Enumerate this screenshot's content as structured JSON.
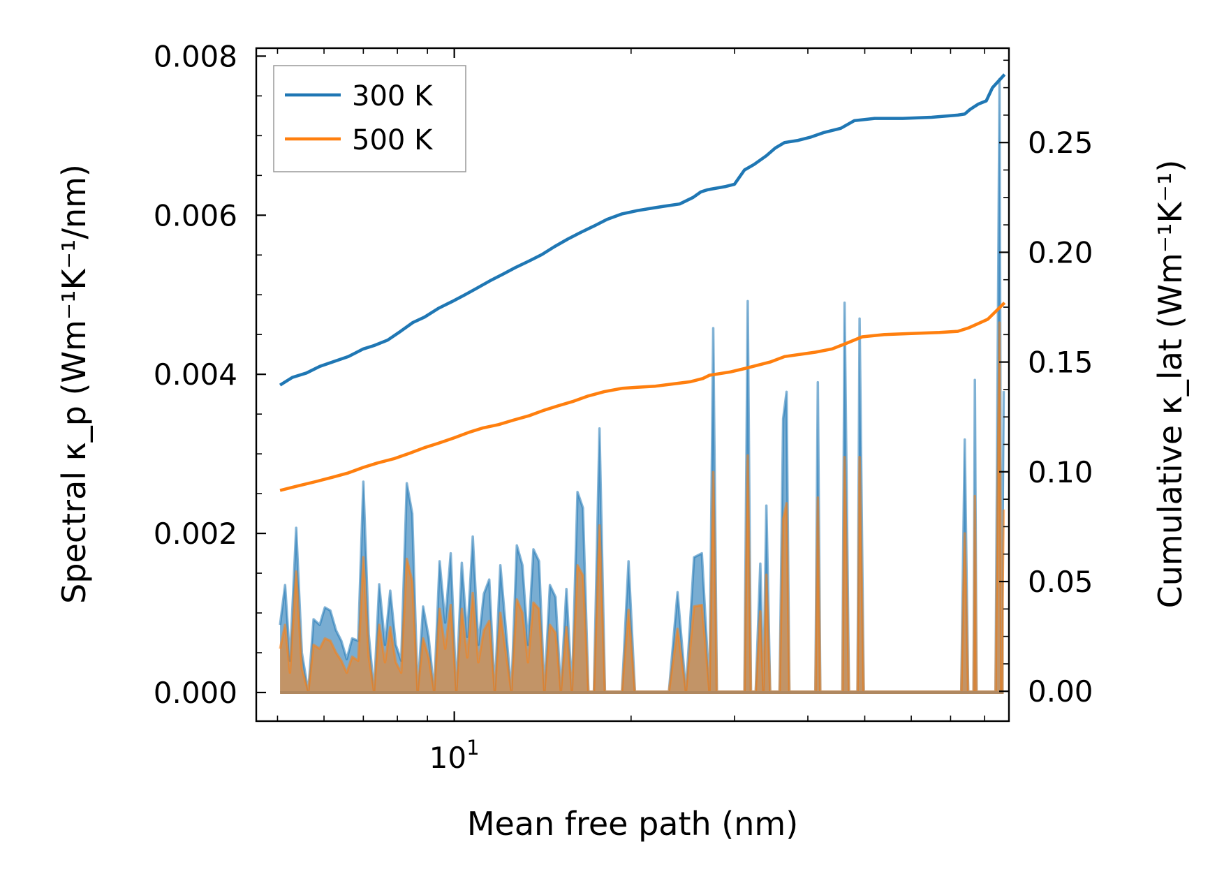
{
  "chart_data": {
    "type": "line",
    "title": "",
    "xlabel": "Mean free path (nm)",
    "ylabel_left": "Spectral κ_p (Wm⁻¹K⁻¹/nm)",
    "ylabel_right": "Cumulative κ_lat (Wm⁻¹K⁻¹)",
    "xscale": "log",
    "xlim": [
      4.6,
      88
    ],
    "ylim_left": [
      -0.00036,
      0.0081
    ],
    "ylim_right": [
      -0.0136,
      0.293
    ],
    "x_tick_labels": [
      {
        "value": 10,
        "base": "10",
        "exp": "1"
      }
    ],
    "y_left_ticks": [
      {
        "value": 0.0,
        "label": "0.000"
      },
      {
        "value": 0.002,
        "label": "0.002"
      },
      {
        "value": 0.004,
        "label": "0.004"
      },
      {
        "value": 0.006,
        "label": "0.006"
      },
      {
        "value": 0.008,
        "label": "0.008"
      }
    ],
    "y_right_ticks": [
      {
        "value": 0.0,
        "label": "0.00"
      },
      {
        "value": 0.05,
        "label": "0.05"
      },
      {
        "value": 0.1,
        "label": "0.10"
      },
      {
        "value": 0.15,
        "label": "0.15"
      },
      {
        "value": 0.2,
        "label": "0.20"
      },
      {
        "value": 0.25,
        "label": "0.25"
      }
    ],
    "legend": {
      "position": "top-left",
      "entries": [
        {
          "label": "300 K",
          "color": "#1f77b4"
        },
        {
          "label": "500 K",
          "color": "#ff7f0e"
        }
      ]
    },
    "spectral_series": [
      {
        "name": "300 K",
        "axis": "left",
        "fill_color": "#1f77b4",
        "fill_opacity": 0.6,
        "x": [
          5.05,
          5.15,
          5.25,
          5.38,
          5.5,
          5.64,
          5.76,
          5.9,
          6.02,
          6.15,
          6.29,
          6.42,
          6.56,
          6.7,
          6.86,
          7.0,
          7.15,
          7.3,
          7.45,
          7.62,
          7.78,
          7.95,
          8.12,
          8.3,
          8.48,
          8.66,
          8.85,
          9.04,
          9.24,
          9.44,
          9.65,
          9.86,
          10.08,
          10.3,
          10.52,
          10.75,
          10.99,
          11.23,
          11.47,
          11.72,
          11.98,
          12.24,
          12.51,
          12.78,
          13.06,
          13.35,
          13.64,
          13.94,
          14.24,
          14.55,
          14.87,
          15.19,
          15.52,
          15.86,
          16.21,
          16.56,
          16.92,
          17.29,
          17.67,
          18.05,
          18.45,
          18.85,
          19.3,
          19.8,
          20.3,
          20.9,
          21.4,
          22.0,
          22.6,
          23.2,
          24.0,
          24.8,
          25.6,
          26.4,
          27.2,
          27.6,
          28.0,
          28.4,
          29.0,
          29.8,
          30.6,
          31.2,
          31.6,
          32.0,
          32.6,
          33.2,
          33.6,
          34.0,
          34.5,
          35.2,
          35.8,
          36.3,
          36.8,
          37.2,
          37.8,
          38.8,
          40.0,
          41.2,
          41.6,
          42.0,
          43.0,
          44.2,
          45.2,
          45.8,
          46.2,
          47.0,
          48.0,
          48.6,
          49.0,
          49.8,
          52.0,
          56.0,
          60.0,
          64.0,
          70.0,
          73.0,
          74.0,
          75.0,
          76.6,
          77.0,
          77.5,
          80.0,
          82.0,
          83.5,
          84.8,
          85.4,
          86.2
        ],
        "y": [
          0.00085,
          0.00135,
          0.0004,
          0.00207,
          0.0005,
          1e-05,
          0.00092,
          0.00085,
          0.00107,
          0.00103,
          0.00078,
          0.00065,
          0.00042,
          0.00068,
          0.00065,
          0.00265,
          0.00073,
          1e-05,
          0.00136,
          0.0006,
          0.00128,
          0.0006,
          0.0004,
          0.00263,
          0.00225,
          1e-05,
          0.00108,
          0.0007,
          1e-05,
          0.00165,
          0.00088,
          0.00175,
          1e-05,
          0.00163,
          0.0007,
          0.00196,
          0.0006,
          0.00124,
          0.00142,
          1e-05,
          0.0016,
          0.0008,
          1e-05,
          0.00185,
          0.0016,
          0.0006,
          0.0018,
          0.00165,
          1e-05,
          0.00135,
          0.0012,
          1e-05,
          0.0013,
          1e-05,
          0.00252,
          0.00232,
          1e-05,
          1e-05,
          0.00332,
          1e-05,
          1e-05,
          1e-05,
          1e-05,
          0.00165,
          1e-05,
          1e-05,
          1e-05,
          1e-05,
          1e-05,
          1e-05,
          0.00126,
          1e-05,
          0.0017,
          0.00175,
          1e-05,
          0.00458,
          1e-05,
          1e-05,
          1e-05,
          1e-05,
          1e-05,
          1e-05,
          0.00492,
          1e-05,
          1e-05,
          0.00162,
          1e-05,
          0.00235,
          1e-05,
          1e-05,
          1e-05,
          0.00344,
          0.00378,
          1e-05,
          1e-05,
          1e-05,
          1e-05,
          1e-05,
          0.0039,
          1e-05,
          1e-05,
          1e-05,
          1e-05,
          1e-05,
          0.0049,
          1e-05,
          1e-05,
          1e-05,
          0.0047,
          1e-05,
          1e-05,
          1e-05,
          1e-05,
          1e-05,
          1e-05,
          1e-05,
          0.00318,
          1e-05,
          1e-05,
          0.00393,
          1e-05,
          1e-05,
          1e-05,
          1e-05,
          0.00771,
          1e-05,
          0.00379
        ]
      },
      {
        "name": "500 K",
        "axis": "left",
        "fill_color": "#ff7f0e",
        "fill_opacity": 0.55,
        "x": [
          5.05,
          5.15,
          5.25,
          5.38,
          5.5,
          5.64,
          5.76,
          5.9,
          6.02,
          6.15,
          6.29,
          6.42,
          6.56,
          6.7,
          6.86,
          7.0,
          7.15,
          7.3,
          7.45,
          7.62,
          7.78,
          7.95,
          8.12,
          8.3,
          8.48,
          8.66,
          8.85,
          9.04,
          9.24,
          9.44,
          9.65,
          9.86,
          10.08,
          10.3,
          10.52,
          10.75,
          10.99,
          11.23,
          11.47,
          11.72,
          11.98,
          12.24,
          12.51,
          12.78,
          13.06,
          13.35,
          13.64,
          13.94,
          14.24,
          14.55,
          14.87,
          15.19,
          15.52,
          15.86,
          16.21,
          16.56,
          16.92,
          17.29,
          17.67,
          18.05,
          18.45,
          18.85,
          19.3,
          19.8,
          20.3,
          20.9,
          21.4,
          22.0,
          22.6,
          23.2,
          24.0,
          24.8,
          25.6,
          26.4,
          27.2,
          27.6,
          28.0,
          28.4,
          29.0,
          29.8,
          30.6,
          31.2,
          31.6,
          32.0,
          32.6,
          33.2,
          33.6,
          34.0,
          34.5,
          35.2,
          35.8,
          36.3,
          36.8,
          37.2,
          37.8,
          38.8,
          40.0,
          41.2,
          41.6,
          42.0,
          43.0,
          44.2,
          45.2,
          45.8,
          46.2,
          47.0,
          48.0,
          48.6,
          49.0,
          49.8,
          52.0,
          56.0,
          60.0,
          64.0,
          70.0,
          73.0,
          74.0,
          75.0,
          76.6,
          77.0,
          77.5,
          80.0,
          82.0,
          83.5,
          84.8,
          85.4,
          86.2
        ],
        "y": [
          0.00055,
          0.00085,
          0.00025,
          0.00152,
          0.0003,
          1e-05,
          0.0006,
          0.00055,
          0.00068,
          0.00065,
          0.0005,
          0.0004,
          0.00025,
          0.00045,
          0.0004,
          0.0017,
          0.00045,
          1e-05,
          0.00085,
          0.00038,
          0.00082,
          0.00038,
          0.00025,
          0.00168,
          0.0014,
          1e-05,
          0.00068,
          0.00044,
          1e-05,
          0.00105,
          0.00055,
          0.0011,
          1e-05,
          0.00105,
          0.00044,
          0.00125,
          0.00038,
          0.00078,
          0.0009,
          1e-05,
          0.001,
          0.0005,
          1e-05,
          0.00117,
          0.001,
          0.00038,
          0.00113,
          0.00105,
          1e-05,
          0.00085,
          0.00075,
          1e-05,
          0.00082,
          1e-05,
          0.0016,
          0.00147,
          1e-05,
          1e-05,
          0.0021,
          1e-05,
          1e-05,
          1e-05,
          1e-05,
          0.00104,
          1e-05,
          1e-05,
          1e-05,
          1e-05,
          1e-05,
          1e-05,
          0.0008,
          1e-05,
          0.00108,
          0.0011,
          1e-05,
          0.00277,
          1e-05,
          1e-05,
          1e-05,
          1e-05,
          1e-05,
          1e-05,
          0.00298,
          1e-05,
          1e-05,
          0.00102,
          1e-05,
          0.00148,
          1e-05,
          1e-05,
          1e-05,
          0.00218,
          0.00238,
          1e-05,
          1e-05,
          1e-05,
          1e-05,
          1e-05,
          0.00245,
          1e-05,
          1e-05,
          1e-05,
          1e-05,
          1e-05,
          0.00296,
          1e-05,
          1e-05,
          1e-05,
          0.00296,
          1e-05,
          1e-05,
          1e-05,
          1e-05,
          1e-05,
          1e-05,
          1e-05,
          0.002,
          1e-05,
          1e-05,
          0.00247,
          1e-05,
          1e-05,
          1e-05,
          1e-05,
          0.00465,
          1e-05,
          0.0023
        ]
      }
    ],
    "cumulative_series": [
      {
        "name": "300 K",
        "axis": "right",
        "color": "#1f77b4",
        "x": [
          5.05,
          5.3,
          5.6,
          5.9,
          6.2,
          6.6,
          7.0,
          7.3,
          7.7,
          8.1,
          8.5,
          8.9,
          9.4,
          9.9,
          10.4,
          10.9,
          11.5,
          12.1,
          12.7,
          13.4,
          14.1,
          14.8,
          15.6,
          16.4,
          17.3,
          18.2,
          19.3,
          20.5,
          21.6,
          22.8,
          24.2,
          25.5,
          26.3,
          27.0,
          29.0,
          30.0,
          31.2,
          32.4,
          34.0,
          35.2,
          36.5,
          38.5,
          40.5,
          42.5,
          45.5,
          48.0,
          52.0,
          58.0,
          65.0,
          72.0,
          74.0,
          75.5,
          78.0,
          80.5,
          82.5,
          86.5
        ],
        "y": [
          0.1395,
          0.143,
          0.145,
          0.148,
          0.15,
          0.1525,
          0.156,
          0.1575,
          0.16,
          0.164,
          0.168,
          0.1705,
          0.1745,
          0.1775,
          0.1805,
          0.1835,
          0.187,
          0.19,
          0.193,
          0.196,
          0.199,
          0.2025,
          0.206,
          0.209,
          0.212,
          0.215,
          0.2175,
          0.219,
          0.22,
          0.221,
          0.222,
          0.225,
          0.2275,
          0.2285,
          0.23,
          0.231,
          0.2375,
          0.24,
          0.244,
          0.2475,
          0.25,
          0.251,
          0.2525,
          0.2545,
          0.2565,
          0.26,
          0.261,
          0.261,
          0.2615,
          0.2625,
          0.263,
          0.265,
          0.2675,
          0.269,
          0.275,
          0.281
        ]
      },
      {
        "name": "500 K",
        "axis": "right",
        "color": "#ff7f0e",
        "x": [
          5.05,
          5.4,
          5.8,
          6.2,
          6.6,
          7.0,
          7.4,
          7.9,
          8.4,
          8.9,
          9.4,
          10.0,
          10.6,
          11.2,
          11.9,
          12.6,
          13.4,
          14.2,
          15.0,
          15.9,
          16.9,
          18.0,
          19.3,
          20.5,
          22.0,
          23.5,
          25.2,
          26.5,
          27.2,
          29.5,
          31.2,
          32.8,
          34.5,
          36.5,
          38.8,
          41.2,
          44.0,
          46.5,
          49.5,
          54.0,
          60.0,
          67.0,
          72.0,
          75.0,
          78.0,
          81.0,
          86.5
        ],
        "y": [
          0.0915,
          0.0935,
          0.0955,
          0.0975,
          0.0995,
          0.102,
          0.104,
          0.106,
          0.1085,
          0.111,
          0.113,
          0.1155,
          0.118,
          0.12,
          0.1215,
          0.1235,
          0.1255,
          0.128,
          0.13,
          0.132,
          0.1345,
          0.1365,
          0.138,
          0.1385,
          0.139,
          0.14,
          0.141,
          0.1425,
          0.144,
          0.1455,
          0.147,
          0.1485,
          0.15,
          0.1525,
          0.1535,
          0.1545,
          0.156,
          0.1585,
          0.1615,
          0.1625,
          0.163,
          0.1635,
          0.164,
          0.1655,
          0.1675,
          0.1695,
          0.177
        ]
      }
    ]
  }
}
